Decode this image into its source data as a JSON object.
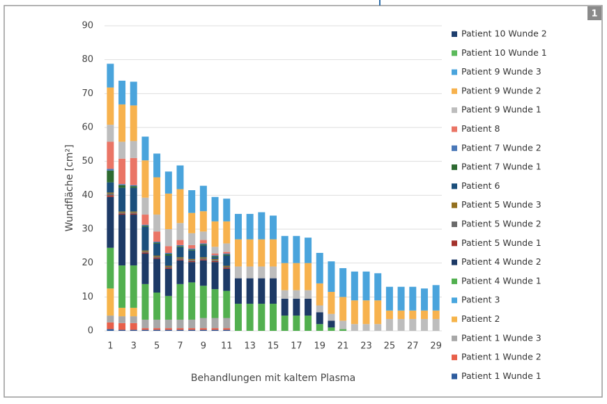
{
  "badge": "1",
  "chart_data": {
    "type": "stacked_bar",
    "y_label": "Wundfläche [cm²]",
    "x_label": "Behandlungen mit kaltem Plasma",
    "categories": [
      1,
      null,
      3,
      null,
      5,
      null,
      7,
      null,
      9,
      null,
      11,
      null,
      13,
      null,
      15,
      null,
      17,
      null,
      19,
      null,
      21,
      null,
      23,
      null,
      25,
      null,
      27,
      null,
      29
    ],
    "ylim": [
      0,
      90
    ],
    "yticks": [
      0,
      10,
      20,
      30,
      40,
      50,
      60,
      70,
      80,
      90
    ],
    "grid": true,
    "series": [
      {
        "name": "Patient 1 Wunde 1",
        "color": "#2e5c9e",
        "values": [
          0.5,
          0.3,
          0.3,
          0.3,
          0.3,
          0.3,
          0.3,
          0.3,
          0.3,
          0.3,
          0.3,
          0,
          0,
          0,
          0,
          0,
          0,
          0,
          0,
          0,
          0,
          0,
          0,
          0,
          0,
          0,
          0,
          0,
          0
        ]
      },
      {
        "name": "Patient 1 Wunde 2",
        "color": "#e8604a",
        "values": [
          2,
          2,
          2,
          0.5,
          0.5,
          0.5,
          0.5,
          0.5,
          0.5,
          0.5,
          0.5,
          0,
          0,
          0,
          0,
          0,
          0,
          0,
          0,
          0,
          0,
          0,
          0,
          0,
          0,
          0,
          0,
          0,
          0
        ]
      },
      {
        "name": "Patient 1 Wunde 3",
        "color": "#a8a8a8",
        "values": [
          2,
          2,
          2,
          2.5,
          2.5,
          2.5,
          2.5,
          2.5,
          3,
          3,
          3,
          0,
          0,
          0,
          0,
          0,
          0,
          0,
          0,
          0,
          0,
          0,
          0,
          0,
          0,
          0,
          0,
          0,
          0
        ]
      },
      {
        "name": "Patient 2",
        "color": "#f6b44a",
        "values": [
          8,
          2.5,
          2.5,
          0,
          0,
          0,
          0,
          0,
          0,
          0,
          0,
          0,
          0,
          0,
          0,
          0,
          0,
          0,
          0,
          0,
          0,
          0,
          0,
          0,
          0,
          0,
          0,
          0,
          0
        ]
      },
      {
        "name": "Patient 3",
        "color": "#48a6de",
        "values": [
          0,
          0,
          0,
          0,
          0,
          0,
          0,
          0,
          0,
          0,
          0,
          0,
          0,
          0,
          0,
          0,
          0,
          0,
          0,
          0,
          0,
          0,
          0,
          0,
          0,
          0,
          0,
          0,
          0
        ]
      },
      {
        "name": "Patient 4 Wunde 1",
        "color": "#52b04f",
        "values": [
          12,
          12.5,
          12.5,
          10.5,
          8,
          7,
          10.5,
          11,
          9.5,
          8.5,
          8,
          8,
          8,
          8,
          8,
          4.5,
          4.5,
          4.5,
          2,
          1,
          0.5,
          0,
          0,
          0,
          0,
          0,
          0,
          0,
          0
        ]
      },
      {
        "name": "Patient 4 Wunde 2",
        "color": "#1d3a66",
        "values": [
          15,
          15,
          15,
          9,
          10,
          8,
          7,
          6,
          7.5,
          8,
          6.5,
          7.5,
          7.5,
          7.5,
          7.5,
          5,
          5,
          5,
          3.5,
          2,
          0,
          0,
          0,
          0,
          0,
          0,
          0,
          0,
          0
        ]
      },
      {
        "name": "Patient 5 Wunde 1",
        "color": "#a3322c",
        "values": [
          0.5,
          0.3,
          0.3,
          0.3,
          0.3,
          0.3,
          0.3,
          0.3,
          0.3,
          0.3,
          0.3,
          0,
          0,
          0,
          0,
          0,
          0,
          0,
          0,
          0,
          0,
          0,
          0,
          0,
          0,
          0,
          0,
          0,
          0
        ]
      },
      {
        "name": "Patient 5 Wunde 2",
        "color": "#6b6b6b",
        "values": [
          0.5,
          0.3,
          0.3,
          0.3,
          0.3,
          0.3,
          0.3,
          0.3,
          0.3,
          0.3,
          0.3,
          0,
          0,
          0,
          0,
          0,
          0,
          0,
          0,
          0,
          0,
          0,
          0,
          0,
          0,
          0,
          0,
          0,
          0
        ]
      },
      {
        "name": "Patient 5 Wunde 3",
        "color": "#93701f",
        "values": [
          0.3,
          0.3,
          0.3,
          0.3,
          0.3,
          0.3,
          0.3,
          0.3,
          0.3,
          0.3,
          0.3,
          0,
          0,
          0,
          0,
          0,
          0,
          0,
          0,
          0,
          0,
          0,
          0,
          0,
          0,
          0,
          0,
          0,
          0
        ]
      },
      {
        "name": "Patient 6",
        "color": "#1b4f7c",
        "values": [
          3,
          7,
          7,
          7,
          3.5,
          3,
          3,
          2.5,
          3.5,
          0.5,
          3,
          0,
          0,
          0,
          0,
          0,
          0,
          0,
          0,
          0,
          0,
          0,
          0,
          0,
          0,
          0,
          0,
          0,
          0
        ]
      },
      {
        "name": "Patient 7 Wunde 1",
        "color": "#2d6a31",
        "values": [
          3.5,
          0.8,
          0.5,
          0.3,
          0.3,
          0.5,
          0.3,
          0.3,
          0.3,
          0.3,
          0.3,
          0,
          0,
          0,
          0,
          0,
          0,
          0,
          0,
          0,
          0,
          0,
          0,
          0,
          0,
          0,
          0,
          0,
          0
        ]
      },
      {
        "name": "Patient 7 Wunde 2",
        "color": "#4a78b8",
        "values": [
          0.5,
          0.3,
          0.3,
          0.3,
          0.3,
          0.3,
          0.3,
          0.3,
          0.3,
          0.3,
          0.3,
          0,
          0,
          0,
          0,
          0,
          0,
          0,
          0,
          0,
          0,
          0,
          0,
          0,
          0,
          0,
          0,
          0,
          0
        ]
      },
      {
        "name": "Patient 8",
        "color": "#ea7566",
        "values": [
          8,
          7.5,
          8,
          3,
          3,
          2,
          1.5,
          1,
          1,
          0.5,
          0.5,
          0,
          0,
          0,
          0,
          0,
          0,
          0,
          0,
          0,
          0,
          0,
          0,
          0,
          0,
          0,
          0,
          0,
          0
        ]
      },
      {
        "name": "Patient 9 Wunde 1",
        "color": "#bdbdbd",
        "values": [
          5,
          5,
          5,
          5,
          5,
          5,
          5,
          3.5,
          2.5,
          2,
          2.5,
          3.5,
          3.5,
          3.5,
          3.5,
          2.5,
          2.5,
          2.5,
          2,
          2,
          2.5,
          2,
          2,
          2,
          3.5,
          3.5,
          3.5,
          3.5,
          3.5
        ]
      },
      {
        "name": "Patient 9 Wunde 2",
        "color": "#f7b24e",
        "values": [
          11,
          11,
          10.5,
          11,
          11,
          10.5,
          10,
          6,
          6,
          7.5,
          6.5,
          8,
          8,
          8,
          8,
          8,
          8,
          8,
          6.5,
          6.5,
          7,
          7,
          7,
          7,
          2.5,
          2.5,
          2.5,
          2.5,
          2.5
        ]
      },
      {
        "name": "Patient 9 Wunde 3",
        "color": "#4aa4dc",
        "values": [
          7,
          7,
          7,
          7,
          7,
          6.5,
          7,
          6.7,
          7.5,
          7.2,
          6.7,
          7.5,
          7.5,
          8,
          7,
          8,
          8,
          7.5,
          9,
          9,
          8.5,
          8.5,
          8.5,
          8,
          7,
          7,
          7,
          6.5,
          7.5
        ]
      },
      {
        "name": "Patient 10 Wunde 1",
        "color": "#5cba5c",
        "values": [
          0,
          0,
          0,
          0,
          0,
          0,
          0,
          0,
          0,
          0,
          0,
          0,
          0,
          0,
          0,
          0,
          0,
          0,
          0,
          0,
          0,
          0,
          0,
          0,
          0,
          0,
          0,
          0,
          0
        ]
      },
      {
        "name": "Patient 10 Wunde 2",
        "color": "#1e3f6e",
        "values": [
          0,
          0,
          0,
          0,
          0,
          0,
          0,
          0,
          0,
          0,
          0,
          0,
          0,
          0,
          0,
          0,
          0,
          0,
          0,
          0,
          0,
          0,
          0,
          0,
          0,
          0,
          0,
          0,
          0
        ]
      }
    ]
  }
}
